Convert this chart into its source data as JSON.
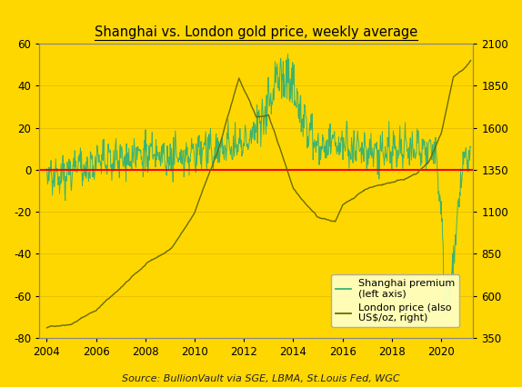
{
  "title": "Shanghai vs. London gold price, weekly average",
  "source_italic": "Source: ",
  "source_normal": "BullionVault via SGE, LBMA, St.Louis Fed, WGC",
  "left_ylim": [
    -80,
    60
  ],
  "right_ylim": [
    350,
    2100
  ],
  "left_yticks": [
    -80,
    -60,
    -40,
    -20,
    0,
    20,
    40,
    60
  ],
  "right_yticks": [
    350,
    600,
    850,
    1100,
    1350,
    1600,
    1850,
    2100
  ],
  "xticks": [
    2004,
    2006,
    2008,
    2010,
    2012,
    2014,
    2016,
    2018,
    2020
  ],
  "xlim": [
    2003.7,
    2021.3
  ],
  "background_color": "#FFD700",
  "premium_color": "#3CB371",
  "london_color": "#6B6B00",
  "hline_color": "#FF0000",
  "legend_premium": "Shanghai premium\n(left axis)",
  "legend_london": "London price (also\nUS$/oz, right)",
  "grid_color": "#E8C000",
  "london_keypoints_x": [
    2004,
    2005,
    2006,
    2007,
    2008,
    2009,
    2010,
    2011,
    2011.8,
    2012.5,
    2013,
    2014,
    2015,
    2015.7,
    2016,
    2017,
    2018,
    2019,
    2019.5,
    2020.0,
    2020.5,
    2020.8,
    2021.0,
    2021.2
  ],
  "london_keypoints_y": [
    410,
    445,
    530,
    665,
    795,
    880,
    1100,
    1490,
    1895,
    1660,
    1680,
    1250,
    1090,
    1060,
    1150,
    1260,
    1300,
    1350,
    1420,
    1580,
    1920,
    1950,
    1970,
    2000
  ],
  "premium_keypoints_x": [
    2004,
    2004.3,
    2005,
    2006,
    2007,
    2008,
    2009,
    2010,
    2011,
    2012,
    2012.5,
    2013.0,
    2013.5,
    2014.0,
    2014.5,
    2015,
    2016,
    2017,
    2018,
    2019,
    2019.8,
    2020.05,
    2020.15,
    2020.4,
    2020.7,
    2020.9,
    2021.0,
    2021.2
  ],
  "premium_keypoints_y": [
    -2,
    -5,
    0,
    3,
    5,
    7,
    5,
    8,
    10,
    12,
    20,
    35,
    45,
    38,
    20,
    10,
    12,
    10,
    8,
    10,
    8,
    -30,
    -65,
    -55,
    -20,
    5,
    8,
    10
  ]
}
